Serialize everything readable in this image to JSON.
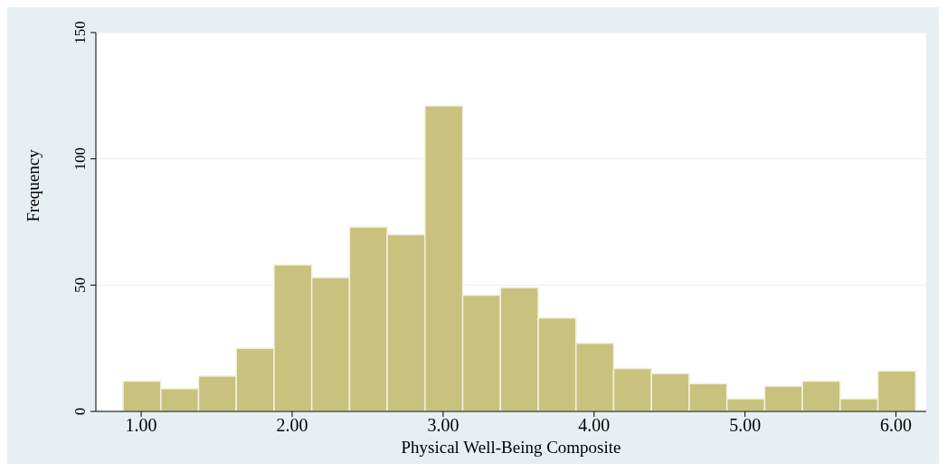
{
  "chart_data": {
    "type": "histogram",
    "xlabel": "Physical Well-Being Composite",
    "ylabel": "Frequency",
    "bins": [
      0.88,
      1.13,
      1.38,
      1.63,
      1.88,
      2.13,
      2.38,
      2.63,
      2.88,
      3.13,
      3.38,
      3.63,
      3.88,
      4.13,
      4.38,
      4.63,
      4.88,
      5.13,
      5.38,
      5.63,
      5.88,
      6.13
    ],
    "values": [
      12,
      9,
      14,
      25,
      58,
      53,
      73,
      70,
      121,
      46,
      49,
      37,
      27,
      17,
      15,
      11,
      5,
      10,
      12,
      5,
      16
    ],
    "color": "#c9c27f",
    "xlim": [
      0.7,
      6.2
    ],
    "xticks": [
      {
        "value": 1,
        "label": "1.00"
      },
      {
        "value": 2,
        "label": "2.00"
      },
      {
        "value": 3,
        "label": "3.00"
      },
      {
        "value": 4,
        "label": "4.00"
      },
      {
        "value": 5,
        "label": "5.00"
      },
      {
        "value": 6,
        "label": "6.00"
      }
    ],
    "ylim": [
      0,
      150
    ],
    "yticks": [
      0,
      50,
      100,
      150
    ],
    "grid": "y",
    "legend": false
  }
}
